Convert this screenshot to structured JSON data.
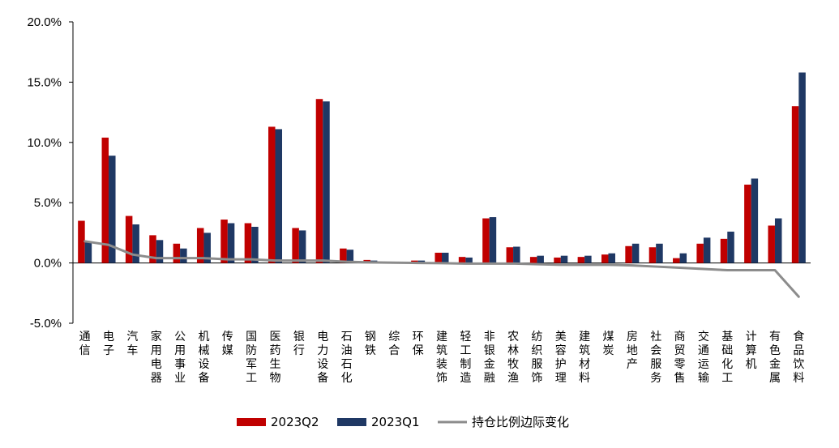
{
  "chart_data": {
    "type": "bar",
    "title": "",
    "xlabel": "",
    "ylabel": "",
    "ylim": [
      -5,
      20
    ],
    "yticks": [
      -5,
      0,
      5,
      10,
      15,
      20
    ],
    "ytick_labels": [
      "-5.0%",
      "0.0%",
      "5.0%",
      "10.0%",
      "15.0%",
      "20.0%"
    ],
    "categories": [
      "通信",
      "电子",
      "汽车",
      "家用电器",
      "公用事业",
      "机械设备",
      "传媒",
      "国防军工",
      "医药生物",
      "银行",
      "电力设备",
      "石油石化",
      "钢铁",
      "综合",
      "环保",
      "建筑装饰",
      "轻工制造",
      "非银金融",
      "农林牧渔",
      "纺织服饰",
      "美容护理",
      "建筑材料",
      "煤炭",
      "房地产",
      "社会服务",
      "商贸零售",
      "交通运输",
      "基础化工",
      "计算机",
      "有色金属",
      "食品饮料"
    ],
    "series": [
      {
        "name": "2023Q2",
        "kind": "bar",
        "color": "#C00000",
        "values": [
          3.5,
          10.4,
          3.9,
          2.3,
          1.6,
          2.9,
          3.6,
          3.3,
          11.3,
          2.9,
          13.6,
          1.2,
          0.25,
          0.05,
          0.2,
          0.85,
          0.5,
          3.7,
          1.3,
          0.5,
          0.45,
          0.5,
          0.7,
          1.4,
          1.3,
          0.4,
          1.6,
          2.0,
          6.5,
          3.1,
          13.0
        ]
      },
      {
        "name": "2023Q1",
        "kind": "bar",
        "color": "#1F3864",
        "values": [
          1.7,
          8.9,
          3.2,
          1.9,
          1.2,
          2.5,
          3.3,
          3.0,
          11.1,
          2.7,
          13.4,
          1.1,
          0.2,
          0.03,
          0.2,
          0.85,
          0.45,
          3.8,
          1.35,
          0.6,
          0.6,
          0.6,
          0.8,
          1.6,
          1.6,
          0.8,
          2.1,
          2.6,
          7.0,
          3.7,
          15.8
        ]
      },
      {
        "name": "持仓比例边际变化",
        "kind": "line",
        "color": "#8C8C8C",
        "values": [
          1.8,
          1.5,
          0.7,
          0.4,
          0.4,
          0.4,
          0.3,
          0.3,
          0.2,
          0.2,
          0.2,
          0.1,
          0.05,
          0.02,
          0.0,
          -0.02,
          -0.05,
          -0.05,
          -0.05,
          -0.1,
          -0.15,
          -0.15,
          -0.15,
          -0.2,
          -0.3,
          -0.4,
          -0.5,
          -0.6,
          -0.6,
          -0.6,
          -2.8
        ]
      }
    ],
    "legend": [
      "2023Q2",
      "2023Q1",
      "持仓比例边际变化"
    ],
    "legend_position": "bottom",
    "grid": false
  }
}
